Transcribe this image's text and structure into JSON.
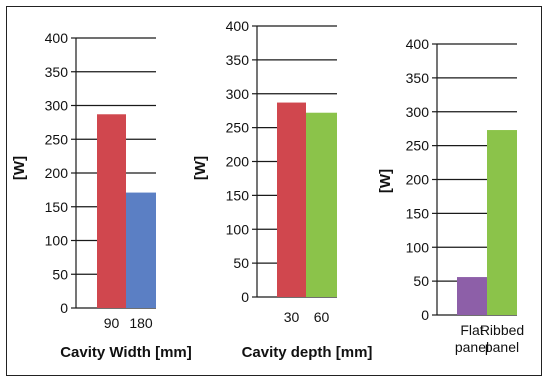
{
  "chart_data": [
    {
      "type": "bar",
      "categories": [
        "90",
        "180"
      ],
      "values": [
        287,
        171
      ],
      "colors": [
        "#d0474e",
        "#5b7fc4"
      ],
      "xlabel": "Cavity Width [mm]",
      "ylabel": "[W]",
      "ylim": [
        0,
        400
      ],
      "yticks": [
        0,
        50,
        100,
        150,
        200,
        250,
        300,
        350,
        400
      ],
      "grid": "horizontal"
    },
    {
      "type": "bar",
      "categories": [
        "30",
        "60"
      ],
      "values": [
        287,
        272
      ],
      "colors": [
        "#d0474e",
        "#8bc34a"
      ],
      "xlabel": "Cavity depth [mm]",
      "ylabel": "[W]",
      "ylim": [
        0,
        400
      ],
      "yticks": [
        0,
        50,
        100,
        150,
        200,
        250,
        300,
        350,
        400
      ],
      "grid": "horizontal"
    },
    {
      "type": "bar",
      "categories": [
        [
          "Flat",
          "panel"
        ],
        [
          "Ribbed",
          "panel"
        ]
      ],
      "values": [
        56,
        273
      ],
      "colors": [
        "#8d5fa8",
        "#8bc34a"
      ],
      "xlabel": "",
      "ylabel": "[W]",
      "ylim": [
        0,
        400
      ],
      "yticks": [
        0,
        50,
        100,
        150,
        200,
        250,
        300,
        350,
        400
      ],
      "grid": "horizontal"
    }
  ]
}
